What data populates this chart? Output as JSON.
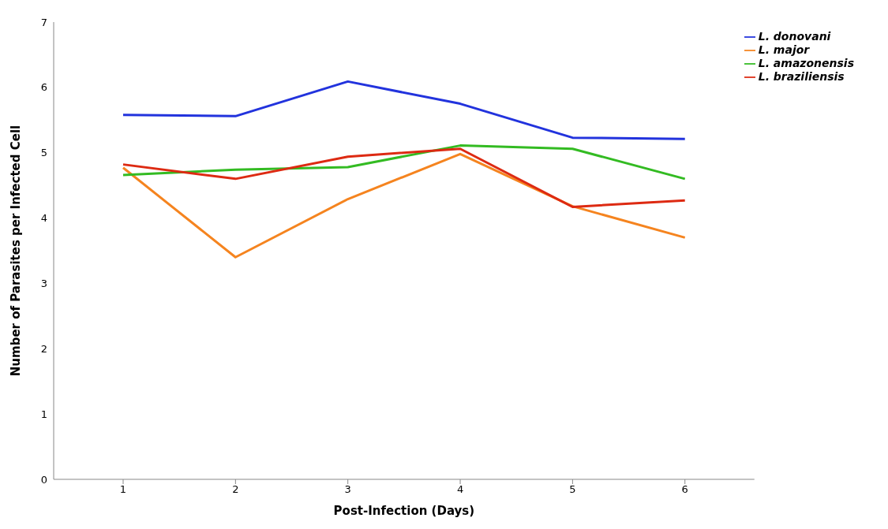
{
  "chart_data": {
    "type": "line",
    "xlabel": "Post-Infection (Days)",
    "ylabel": "Number of Parasites per Infected Cell",
    "categories": [
      "1",
      "2",
      "3",
      "4",
      "5",
      "6"
    ],
    "series": [
      {
        "name": "L. donovani",
        "color": "#2233dd",
        "values": [
          5.58,
          5.56,
          6.09,
          5.75,
          5.23,
          5.21
        ]
      },
      {
        "name": "L. major",
        "color": "#f5841f",
        "values": [
          4.77,
          3.4,
          4.29,
          4.98,
          4.18,
          3.7
        ]
      },
      {
        "name": "L. amazonensis",
        "color": "#33bb22",
        "values": [
          4.66,
          4.74,
          4.78,
          5.11,
          5.06,
          4.6
        ]
      },
      {
        "name": "L. braziliensis",
        "color": "#dd2a12",
        "values": [
          4.82,
          4.6,
          4.94,
          5.06,
          4.17,
          4.27
        ]
      }
    ],
    "ylim": [
      0,
      7
    ],
    "yticks": [
      0,
      1,
      2,
      3,
      4,
      5,
      6,
      7
    ],
    "grid": false,
    "legend": "top right",
    "marker": "none",
    "line_style": "solid"
  }
}
